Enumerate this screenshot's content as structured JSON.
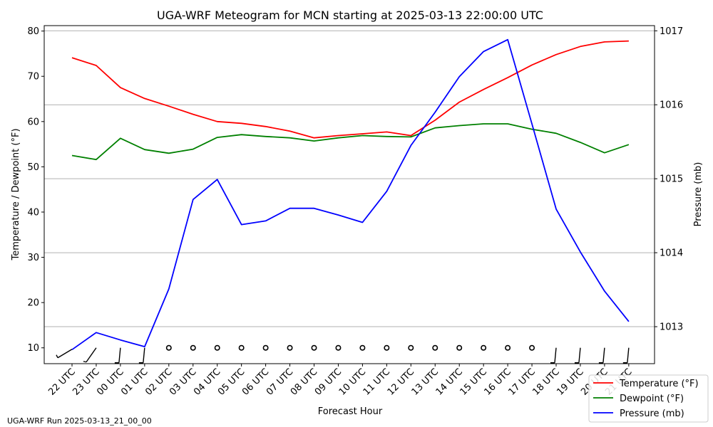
{
  "chart_data": {
    "type": "line",
    "title": "UGA-WRF Meteogram for MCN starting at 2025-03-13 22:00:00 UTC",
    "xlabel": "Forecast Hour",
    "ylabel_left": "Temperature / Dewpoint (°F)",
    "ylabel_right": "Pressure (mb)",
    "categories": [
      "22 UTC",
      "23 UTC",
      "00 UTC",
      "01 UTC",
      "02 UTC",
      "03 UTC",
      "04 UTC",
      "05 UTC",
      "06 UTC",
      "07 UTC",
      "08 UTC",
      "09 UTC",
      "10 UTC",
      "11 UTC",
      "12 UTC",
      "13 UTC",
      "14 UTC",
      "15 UTC",
      "16 UTC",
      "17 UTC",
      "18 UTC",
      "19 UTC",
      "20 UTC",
      "21 UTC"
    ],
    "ylim_left": [
      6.5,
      81.2
    ],
    "yticks_left": [
      10,
      20,
      30,
      40,
      50,
      60,
      70,
      80
    ],
    "ylim_right": [
      1012.5,
      1017.07
    ],
    "yticks_right": [
      1013,
      1014,
      1015,
      1016,
      1017
    ],
    "grid": "horizontal lines at right-axis ticks",
    "legend_position": "bottom-right",
    "series": [
      {
        "name": "Temperature (°F)",
        "axis": "left",
        "color": "#ff0000",
        "values": [
          74.1,
          72.4,
          67.5,
          65.1,
          63.4,
          61.6,
          60.0,
          59.6,
          58.9,
          57.9,
          56.4,
          56.9,
          57.3,
          57.7,
          56.9,
          60.3,
          64.3,
          67.1,
          69.7,
          72.5,
          74.8,
          76.6,
          77.6,
          77.8
        ]
      },
      {
        "name": "Dewpoint (°F)",
        "axis": "left",
        "color": "#008000",
        "values": [
          52.5,
          51.6,
          56.3,
          53.8,
          53.0,
          53.9,
          56.5,
          57.1,
          56.7,
          56.4,
          55.7,
          56.4,
          56.9,
          56.7,
          56.6,
          58.6,
          59.1,
          59.5,
          59.5,
          58.3,
          57.4,
          55.4,
          53.1,
          54.9
        ]
      },
      {
        "name": "Pressure (mb)",
        "axis": "right",
        "color": "#0000ff",
        "values": [
          1012.69,
          1012.92,
          1012.82,
          1012.73,
          1013.51,
          1014.72,
          1014.99,
          1014.38,
          1014.43,
          1014.6,
          1014.6,
          1014.51,
          1014.41,
          1014.83,
          1015.45,
          1015.9,
          1016.38,
          1016.72,
          1016.88,
          1015.74,
          1014.59,
          1014.01,
          1013.48,
          1013.07
        ]
      }
    ],
    "wind_barbs": {
      "y_level": 10,
      "calm": [
        false,
        false,
        false,
        false,
        true,
        true,
        true,
        true,
        true,
        true,
        true,
        true,
        true,
        true,
        true,
        true,
        true,
        true,
        true,
        true,
        false,
        false,
        false,
        false
      ]
    }
  },
  "footer": "UGA-WRF Run 2025-03-13_21_00_00"
}
